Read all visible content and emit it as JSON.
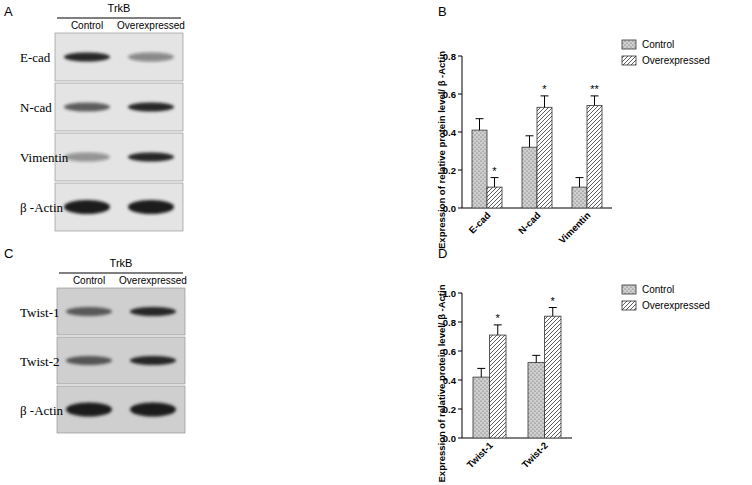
{
  "panel_labels": [
    "A",
    "B",
    "C",
    "D"
  ],
  "blots": [
    {
      "header": "TrkB",
      "lanes": [
        "Control",
        "Overexpressed"
      ],
      "rows": [
        "E-cad",
        "N-cad",
        "Vimentin",
        "β -Actin"
      ]
    },
    {
      "header": "TrkB",
      "lanes": [
        "Control",
        "Overexpressed"
      ],
      "rows": [
        "Twist-1",
        "Twist-2",
        "β -Actin"
      ]
    }
  ],
  "chart_data": [
    {
      "type": "bar",
      "y_label": "Expression of relative protein level/ β -Actin",
      "categories": [
        "E-cad",
        "N-cad",
        "Vimentin"
      ],
      "series": [
        {
          "name": "Control",
          "color": "#d0d0d0",
          "values": [
            0.41,
            0.32,
            0.11
          ],
          "errors": [
            0.06,
            0.06,
            0.05
          ]
        },
        {
          "name": "Overexpressed",
          "color": "#ffffff",
          "values": [
            0.11,
            0.53,
            0.54
          ],
          "errors": [
            0.05,
            0.06,
            0.05
          ],
          "significance": [
            "*",
            "*",
            "**"
          ]
        }
      ],
      "ylim": [
        0,
        0.8
      ],
      "yticks": [
        {
          "value": 0,
          "label": "0.0"
        },
        0.2,
        0.4,
        0.6,
        0.8
      ],
      "grid": false,
      "legend": "right"
    },
    {
      "type": "bar",
      "y_label": "Expression of relative protein level/ β -Actin",
      "categories": [
        "Twist-1",
        "Twist-2"
      ],
      "series": [
        {
          "name": "Control",
          "color": "#d0d0d0",
          "values": [
            0.42,
            0.52
          ],
          "errors": [
            0.06,
            0.05
          ]
        },
        {
          "name": "Overexpressed",
          "color": "#ffffff",
          "values": [
            0.71,
            0.84
          ],
          "errors": [
            0.07,
            0.06
          ],
          "significance": [
            "*",
            "*"
          ]
        }
      ],
      "ylim": [
        0,
        1.0
      ],
      "yticks": [
        {
          "value": 0,
          "label": "0.0"
        },
        0.2,
        0.4,
        0.6,
        0.8,
        {
          "value": 1.0,
          "label": "1.0"
        }
      ],
      "grid": false,
      "legend": "right"
    }
  ]
}
